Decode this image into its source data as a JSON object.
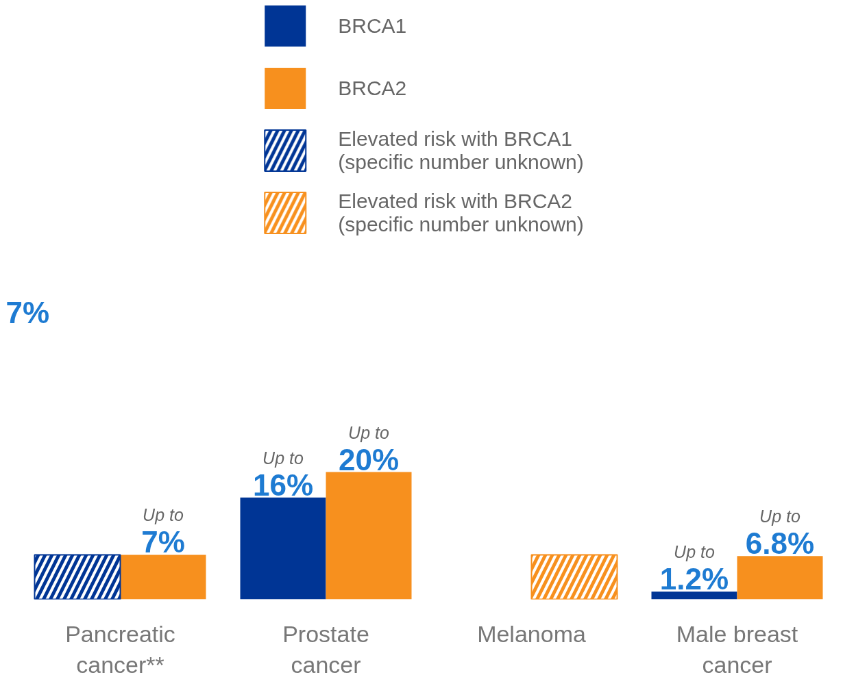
{
  "chart_data": {
    "type": "bar",
    "categories": [
      "Pancreatic cancer**",
      "Prostate cancer",
      "Melanoma",
      "Male breast cancer"
    ],
    "series": [
      {
        "name": "BRCA1",
        "color": "#003595",
        "values": [
          null,
          16,
          null,
          1.2
        ],
        "value_labels": [
          null,
          "Up to 16%",
          null,
          "Up to 1.2%"
        ]
      },
      {
        "name": "BRCA2",
        "color": "#f7901e",
        "values": [
          7,
          20,
          null,
          6.8
        ],
        "value_labels": [
          "Up to 7%",
          "Up to 20%",
          null,
          "Up to 6.8%"
        ]
      },
      {
        "name": "Elevated risk with BRCA1\n(specific number unknown)",
        "color": "#003595",
        "values": [
          7,
          null,
          null,
          null
        ]
      },
      {
        "name": "Elevated risk with BRCA2\n(specific number unknown)",
        "color": "#f7901e",
        "values": [
          null,
          null,
          7,
          null
        ]
      }
    ],
    "tick_labels": "x",
    "legend": "top",
    "annotations": [
      "7%"
    ]
  }
}
